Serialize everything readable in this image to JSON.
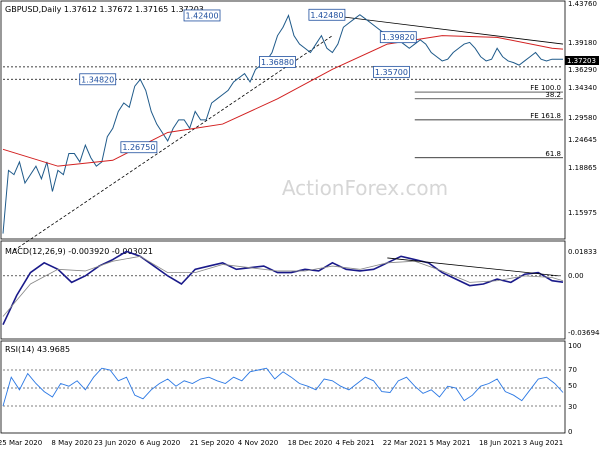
{
  "chart_data": [
    {
      "type": "line",
      "panel": "price",
      "title": "GBPUSD,Daily  1.37612 1.37672 1.37165 1.37203",
      "ylim": [
        1.1597,
        1.4376
      ],
      "y_ticks": [
        "1.43760",
        "1.39180",
        "1.34340",
        "1.29580",
        "1.24645",
        "1.18865",
        "1.15975"
      ],
      "y_tick_values": [
        1.4376,
        1.3918,
        1.3434,
        1.2958,
        1.24645,
        1.18865,
        1.15975
      ],
      "current_price_label": "1.37203",
      "current_price": 1.37203,
      "secondary_price_label": "1.36290",
      "secondary_price": 1.3629,
      "x_tick_labels": [
        "25 Mar 2020",
        "8 May 2020",
        "23 Jun 2020",
        "6 Aug 2020",
        "21 Sep 2020",
        "4 Nov 2020",
        "18 Dec 2020",
        "4 Feb 2021",
        "22 Mar 2021",
        "5 May 2021",
        "18 Jun 2021",
        "3 Aug 2021"
      ],
      "series": [
        {
          "name": "",
          "color": "#1f5a8a",
          "x": [
            0,
            4,
            8,
            12,
            16,
            20,
            24,
            28,
            32,
            36,
            40,
            44,
            48,
            52,
            56,
            60,
            64,
            68,
            72,
            76,
            80,
            84,
            88,
            92,
            96,
            100,
            104,
            108,
            112,
            116,
            120,
            124,
            128,
            132,
            136,
            140,
            144,
            148,
            152,
            156,
            160,
            164,
            168,
            172,
            176,
            180,
            184,
            188,
            192,
            196,
            200,
            204,
            208,
            212,
            216,
            220,
            224,
            228,
            232,
            236,
            240,
            244,
            248,
            252,
            256,
            260,
            264,
            268,
            272,
            276,
            280,
            284,
            288,
            292,
            296,
            300,
            304,
            308,
            312,
            316,
            320,
            324,
            328,
            332,
            336,
            340,
            344,
            348,
            352,
            356,
            360,
            364,
            368,
            372,
            376,
            380,
            384,
            388,
            392,
            396,
            400,
            404,
            408
          ],
          "y": [
            1.165,
            1.24,
            1.235,
            1.25,
            1.225,
            1.235,
            1.245,
            1.23,
            1.25,
            1.215,
            1.24,
            1.235,
            1.26,
            1.26,
            1.25,
            1.27,
            1.255,
            1.245,
            1.25,
            1.28,
            1.29,
            1.31,
            1.32,
            1.315,
            1.34,
            1.348,
            1.335,
            1.31,
            1.295,
            1.285,
            1.275,
            1.29,
            1.3,
            1.3,
            1.29,
            1.31,
            1.3,
            1.3,
            1.32,
            1.325,
            1.33,
            1.335,
            1.345,
            1.35,
            1.355,
            1.345,
            1.36,
            1.365,
            1.37,
            1.38,
            1.4,
            1.41,
            1.424,
            1.4,
            1.39,
            1.385,
            1.38,
            1.39,
            1.4,
            1.385,
            1.38,
            1.39,
            1.41,
            1.415,
            1.42,
            1.4248,
            1.42,
            1.415,
            1.41,
            1.405,
            1.4,
            1.398,
            1.395,
            1.39,
            1.385,
            1.39,
            1.395,
            1.39,
            1.38,
            1.375,
            1.37,
            1.372,
            1.38,
            1.385,
            1.39,
            1.392,
            1.385,
            1.375,
            1.37,
            1.372,
            1.385,
            1.375,
            1.37,
            1.368,
            1.365,
            1.37,
            1.375,
            1.38,
            1.372,
            1.37,
            1.37203,
            1.372,
            1.37203
          ]
        }
      ],
      "moving_average": {
        "color": "#d22020",
        "x": [
          0,
          40,
          80,
          120,
          160,
          200,
          240,
          280,
          320,
          360,
          400,
          408
        ],
        "y": [
          1.265,
          1.245,
          1.252,
          1.285,
          1.295,
          1.325,
          1.36,
          1.39,
          1.4,
          1.398,
          1.385,
          1.384
        ]
      },
      "trendlines": [
        {
          "name": "rising-trendline",
          "x": [
            8,
            240
          ],
          "y": [
            1.145,
            1.4
          ]
        },
        {
          "name": "falling-trendline",
          "x": [
            235,
            408
          ],
          "y": [
            1.4248,
            1.39
          ]
        }
      ],
      "horizontal_levels": [
        {
          "name": "level-1-3629",
          "value": 1.3629,
          "style": "dashed"
        },
        {
          "name": "level-1-3482",
          "value": 1.3482,
          "style": "dashed"
        },
        {
          "name": "fe-100",
          "value": 1.333,
          "style": "solid"
        },
        {
          "name": "fib-38-2",
          "value": 1.325,
          "style": "solid"
        },
        {
          "name": "fe-161-8",
          "value": 1.3,
          "style": "solid"
        },
        {
          "name": "fib-61-8",
          "value": 1.255,
          "style": "solid"
        }
      ],
      "annotations": [
        {
          "text": "1.42400",
          "x": 145,
          "y": 1.424
        },
        {
          "text": "1.42480",
          "x": 236,
          "y": 1.4248
        },
        {
          "text": "1.39820",
          "x": 288,
          "y": 1.3982
        },
        {
          "text": "1.36880",
          "x": 200,
          "y": 1.3688
        },
        {
          "text": "1.35700",
          "x": 283,
          "y": 1.357
        },
        {
          "text": "1.34820",
          "x": 69,
          "y": 1.3482
        },
        {
          "text": "1.26750",
          "x": 99,
          "y": 1.2675
        },
        {
          "text": "FE 100.0",
          "x": 285,
          "y": 1.333
        },
        {
          "text": "38.2",
          "x": 295,
          "y": 1.325
        },
        {
          "text": "FE 161.8",
          "x": 285,
          "y": 1.3
        },
        {
          "text": "61.8",
          "x": 295,
          "y": 1.255
        }
      ],
      "watermark": "ActionForex.com"
    },
    {
      "type": "line",
      "panel": "macd",
      "title": "MACD(12,26,9) -0.003920 -0.003021",
      "ylim": [
        -0.036944,
        0.01833
      ],
      "y_ticks": [
        "0.01833",
        "0.00",
        "-0.036944"
      ],
      "y_tick_values": [
        0.01833,
        0.0,
        -0.036944
      ],
      "series": [
        {
          "name": "",
          "color": "#1a1a8a",
          "x": [
            0,
            10,
            20,
            30,
            40,
            50,
            60,
            70,
            80,
            90,
            100,
            110,
            120,
            130,
            140,
            150,
            160,
            170,
            180,
            190,
            200,
            210,
            220,
            230,
            240,
            250,
            260,
            270,
            280,
            290,
            300,
            310,
            320,
            330,
            340,
            350,
            360,
            370,
            380,
            390,
            400,
            408
          ],
          "y": [
            -0.03,
            -0.012,
            0.002,
            0.008,
            0.004,
            -0.004,
            0.0,
            0.006,
            0.01,
            0.015,
            0.012,
            0.006,
            0.0,
            -0.005,
            0.004,
            0.006,
            0.008,
            0.004,
            0.005,
            0.006,
            0.002,
            0.002,
            0.004,
            0.003,
            0.008,
            0.004,
            0.003,
            0.004,
            0.008,
            0.012,
            0.01,
            0.008,
            0.002,
            -0.002,
            -0.006,
            -0.005,
            -0.002,
            -0.004,
            0.001,
            0.002,
            -0.003,
            -0.00392
          ]
        },
        {
          "name": "",
          "color": "#888888",
          "x": [
            0,
            20,
            40,
            60,
            80,
            100,
            120,
            140,
            160,
            180,
            200,
            220,
            240,
            260,
            280,
            300,
            320,
            340,
            360,
            380,
            400,
            408
          ],
          "y": [
            -0.025,
            -0.005,
            0.004,
            0.003,
            0.009,
            0.012,
            0.002,
            0.002,
            0.007,
            0.005,
            0.003,
            0.003,
            0.006,
            0.004,
            0.008,
            0.009,
            0.003,
            -0.004,
            -0.003,
            0.0,
            -0.001,
            -0.003021
          ]
        }
      ],
      "trendlines": [
        {
          "name": "macd-falling-trendline",
          "x": [
            280,
            405
          ],
          "y": [
            0.011,
            0.0
          ]
        }
      ]
    },
    {
      "type": "line",
      "panel": "rsi",
      "title": "RSI(14) 43.9685",
      "ylim": [
        0,
        100
      ],
      "y_ticks": [
        "100",
        "70",
        "50",
        "30",
        "0"
      ],
      "y_tick_values": [
        100,
        70,
        50,
        30,
        0
      ],
      "series": [
        {
          "name": "",
          "color": "#2b78e4",
          "x": [
            0,
            6,
            12,
            18,
            24,
            30,
            36,
            42,
            48,
            54,
            60,
            66,
            72,
            78,
            84,
            90,
            96,
            102,
            108,
            114,
            120,
            126,
            132,
            138,
            144,
            150,
            156,
            162,
            168,
            174,
            180,
            186,
            192,
            198,
            204,
            210,
            216,
            222,
            228,
            234,
            240,
            246,
            252,
            258,
            264,
            270,
            276,
            282,
            288,
            294,
            300,
            306,
            312,
            318,
            324,
            330,
            336,
            342,
            348,
            354,
            360,
            366,
            372,
            378,
            384,
            390,
            396,
            402,
            408
          ],
          "y": [
            30,
            62,
            48,
            66,
            55,
            46,
            40,
            55,
            52,
            58,
            48,
            62,
            72,
            70,
            58,
            62,
            42,
            38,
            48,
            55,
            60,
            52,
            58,
            55,
            60,
            62,
            58,
            55,
            62,
            58,
            68,
            70,
            72,
            60,
            68,
            62,
            55,
            52,
            48,
            60,
            58,
            52,
            48,
            55,
            62,
            58,
            46,
            45,
            58,
            62,
            52,
            44,
            48,
            40,
            52,
            50,
            36,
            42,
            52,
            55,
            60,
            46,
            42,
            36,
            48,
            60,
            62,
            55,
            45
          ]
        }
      ]
    }
  ]
}
